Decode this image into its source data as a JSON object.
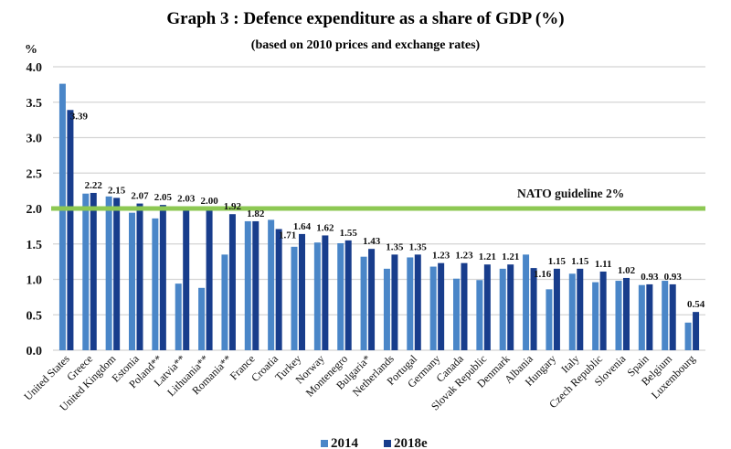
{
  "chart_data": {
    "type": "bar",
    "title": "Graph 3 : Defence expenditure as a share of GDP (%)",
    "subtitle": "(based on 2010 prices and exchange rates)",
    "ylabel": "%",
    "xlabel": "",
    "ylim": [
      0,
      4.0
    ],
    "yticks": [
      "0.0",
      "0.5",
      "1.0",
      "1.5",
      "2.0",
      "2.5",
      "3.0",
      "3.5",
      "4.0"
    ],
    "ytick_values": [
      0,
      0.5,
      1.0,
      1.5,
      2.0,
      2.5,
      3.0,
      3.5,
      4.0
    ],
    "grid": true,
    "legend_position": "bottom-center",
    "categories": [
      "United States",
      "Greece",
      "United Kingdom",
      "Estonia",
      "Poland**",
      "Latvia**",
      "Lithuania**",
      "Romania**",
      "France",
      "Croatia",
      "Turkey",
      "Norway",
      "Montenegro",
      "Bulgaria*",
      "Netherlands",
      "Portugal",
      "Germany",
      "Canada",
      "Slovak Republic",
      "Denmark",
      "Albania",
      "Hungary",
      "Italy",
      "Czech Republic",
      "Slovenia",
      "Spain",
      "Belgium",
      "Luxembourg"
    ],
    "series": [
      {
        "name": "2014",
        "color": "#4a86c8",
        "values": [
          3.76,
          2.21,
          2.17,
          1.94,
          1.86,
          0.94,
          0.88,
          1.35,
          1.82,
          1.84,
          1.46,
          1.52,
          1.51,
          1.32,
          1.15,
          1.31,
          1.18,
          1.01,
          0.99,
          1.15,
          1.35,
          0.86,
          1.08,
          0.96,
          0.98,
          0.92,
          0.98,
          0.39
        ]
      },
      {
        "name": "2018e",
        "color": "#183d8c",
        "values": [
          3.39,
          2.22,
          2.15,
          2.07,
          2.05,
          2.03,
          2.0,
          1.92,
          1.82,
          1.71,
          1.64,
          1.62,
          1.55,
          1.43,
          1.35,
          1.35,
          1.23,
          1.23,
          1.21,
          1.21,
          1.16,
          1.15,
          1.15,
          1.11,
          1.02,
          0.93,
          0.93,
          0.54
        ],
        "data_labels": [
          "3.39",
          "2.22",
          "2.15",
          "2.07",
          "2.05",
          "2.03",
          "2.00",
          "1.92",
          "1.82",
          "1.71",
          "1.64",
          "1.62",
          "1.55",
          "1.43",
          "1.35",
          "1.35",
          "1.23",
          "1.23",
          "1.21",
          "1.21",
          "1.16",
          "1.15",
          "1.15",
          "1.11",
          "1.02",
          "0.93",
          "0.93",
          "0.54"
        ]
      }
    ],
    "reference_line": {
      "value": 2.0,
      "label": "NATO guideline 2%",
      "color": "#8dc853"
    },
    "gridline_color": "#d4d4d4"
  }
}
